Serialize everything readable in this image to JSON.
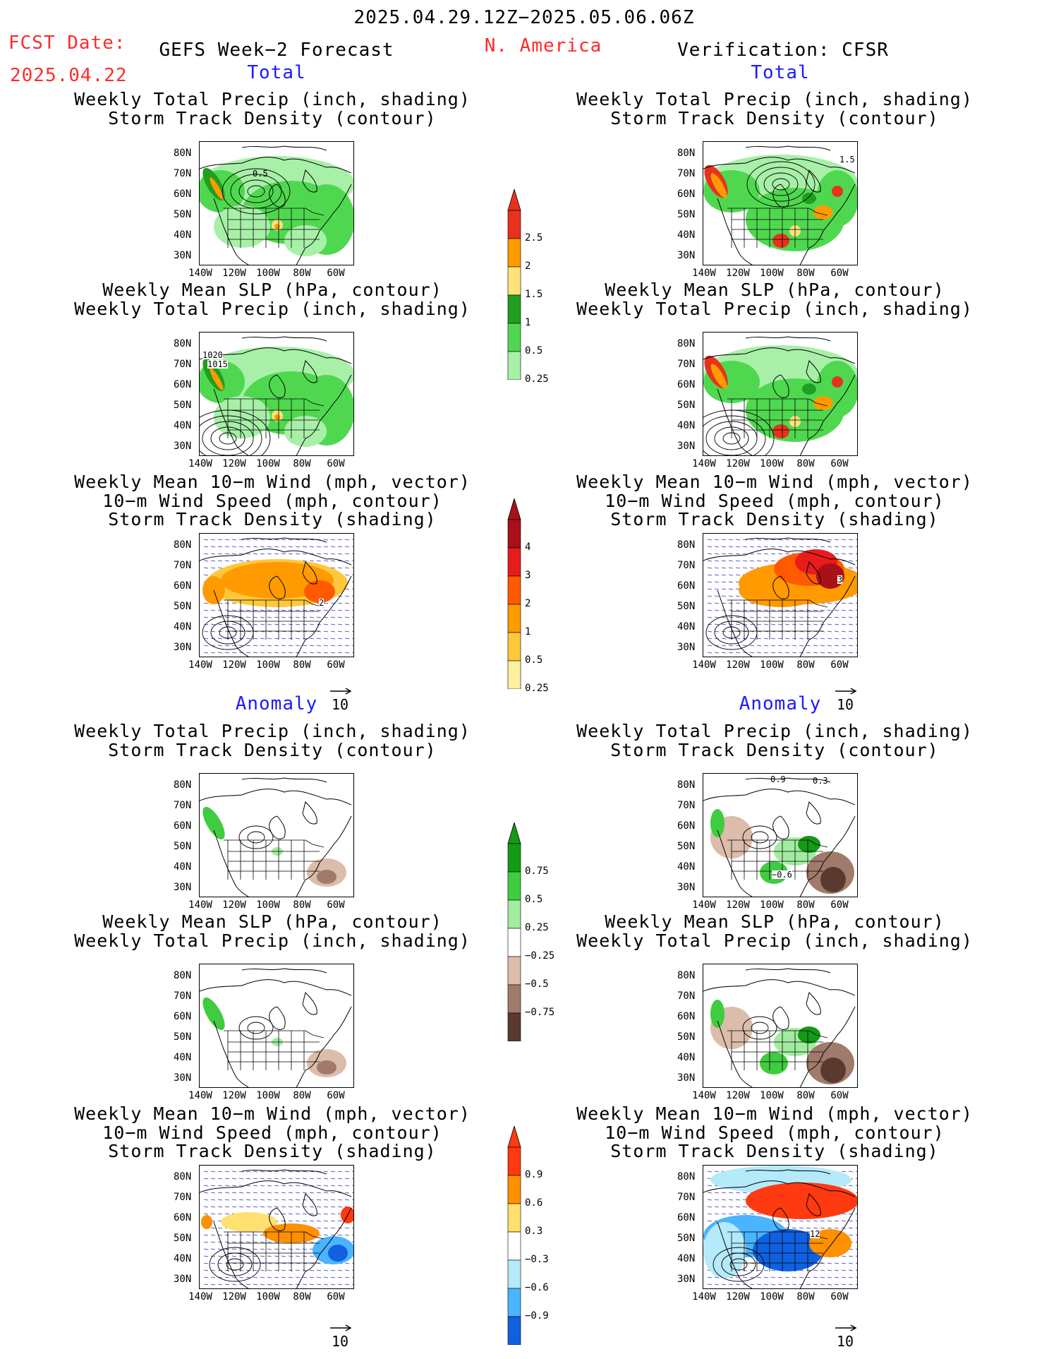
{
  "header": {
    "period": "2025.04.29.12Z−2025.05.06.06Z",
    "fcst_label": "FCST Date:",
    "fcst_date": "2025.04.22",
    "left_title": "GEFS Week−2 Forecast",
    "region": "N. America",
    "right_title": "Verification: CFSR"
  },
  "sections": {
    "total": "Total",
    "anomaly": "Anomaly"
  },
  "panel_titles": {
    "precip_track": [
      "Weekly Total Precip (inch, shading)",
      "Storm Track Density (contour)"
    ],
    "slp_precip": [
      "Weekly Mean SLP (hPa, contour)",
      "Weekly Total Precip (inch, shading)"
    ],
    "wind_track": [
      "Weekly Mean 10−m Wind (mph, vector)",
      "10−m Wind Speed (mph, contour)",
      "Storm Track Density (shading)"
    ]
  },
  "axes": {
    "lat_labels": [
      "80N",
      "70N",
      "60N",
      "50N",
      "40N",
      "30N"
    ],
    "lon_labels": [
      "140W",
      "120W",
      "100W",
      "80W",
      "60W"
    ]
  },
  "vector_ref": "10",
  "map_annotations": {
    "fc_total_precip": "0.5",
    "fc_total_slp_a": "1020",
    "fc_total_slp_b": "1015",
    "fc_total_wind": "2",
    "ver_total_precip": "1.5",
    "ver_total_wind": "3",
    "ver_anom_precip_a": "−0.6",
    "ver_anom_precip_b": "0.9",
    "ver_anom_precip_c": "0.3",
    "ver_anom_wind": "12"
  },
  "colorbars": [
    {
      "name": "total-precip",
      "labels": [
        "2.5",
        "2",
        "1.5",
        "1",
        "0.5",
        "0.25"
      ],
      "colors": [
        "#e8321e",
        "#ff9b00",
        "#ffe27a",
        "#1f9e1f",
        "#4fd84f",
        "#a8f0a8"
      ]
    },
    {
      "name": "total-track",
      "labels": [
        "4",
        "3",
        "2",
        "1",
        "0.5",
        "0.25"
      ],
      "colors": [
        "#a8101a",
        "#e81c1c",
        "#ff5a00",
        "#ff9b00",
        "#ffc83c",
        "#fff0a0"
      ]
    },
    {
      "name": "anom-precip",
      "labels": [
        "0.75",
        "0.5",
        "0.25",
        "−0.25",
        "−0.5",
        "−0.75"
      ],
      "colors": [
        "#149a14",
        "#40cc40",
        "#a2eca2",
        "#ffffff",
        "#dcbcaa",
        "#a07a6a",
        "#5a3a2e"
      ]
    },
    {
      "name": "anom-track",
      "labels": [
        "0.9",
        "0.6",
        "0.3",
        "−0.3",
        "−0.6",
        "−0.9"
      ],
      "colors": [
        "#ff3a10",
        "#ff9000",
        "#ffe070",
        "#ffffff",
        "#b4eafa",
        "#4ab4ff",
        "#1060e0"
      ]
    }
  ]
}
